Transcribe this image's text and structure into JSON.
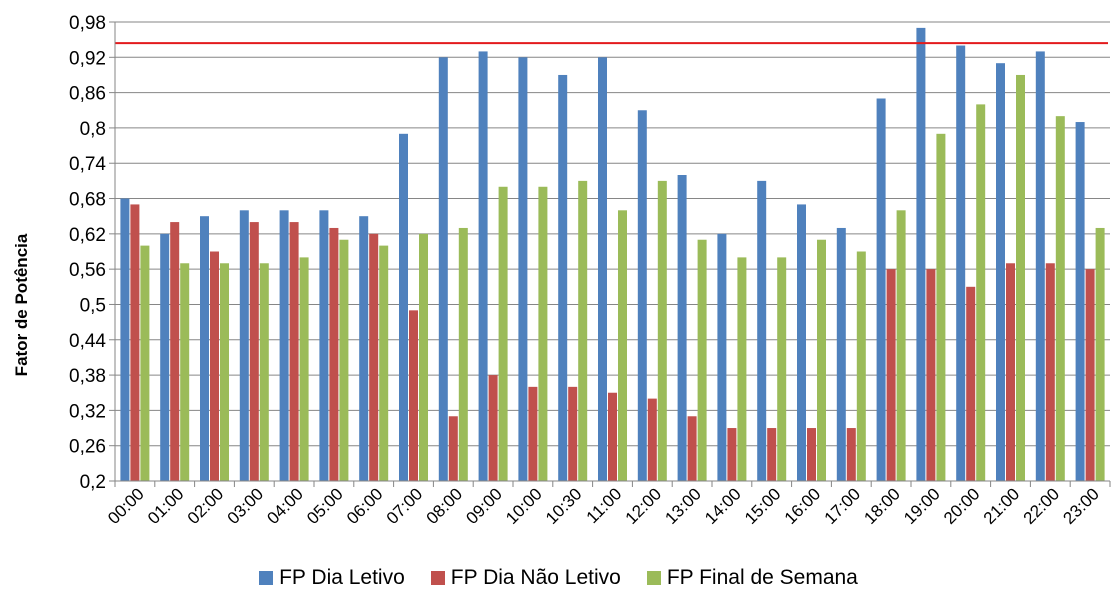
{
  "chart_data": {
    "type": "bar",
    "ylabel": "Fator de Potência",
    "ylim": [
      0.2,
      0.98
    ],
    "yticks": [
      "0,2",
      "0,26",
      "0,32",
      "0,38",
      "0,44",
      "0,5",
      "0,56",
      "0,62",
      "0,68",
      "0,74",
      "0,8",
      "0,86",
      "0,92",
      "0,98"
    ],
    "categories": [
      "00:00",
      "01:00",
      "02:00",
      "03:00",
      "04:00",
      "05:00",
      "06:00",
      "07:00",
      "08:00",
      "09:00",
      "10:00",
      "10:30",
      "11:00",
      "12:00",
      "13:00",
      "14:00",
      "15:00",
      "16:00",
      "17:00",
      "18:00",
      "19:00",
      "20:00",
      "21:00",
      "22:00",
      "23:00"
    ],
    "series": [
      {
        "name": "FP Dia Letivo",
        "color": "#4f81bd",
        "values": [
          0.68,
          0.62,
          0.65,
          0.66,
          0.66,
          0.66,
          0.65,
          0.79,
          0.92,
          0.93,
          0.92,
          0.89,
          0.92,
          0.83,
          0.72,
          0.62,
          0.71,
          0.67,
          0.63,
          0.85,
          0.97,
          0.94,
          0.91,
          0.93,
          0.81
        ]
      },
      {
        "name": "FP Dia Não Letivo",
        "color": "#c0504d",
        "values": [
          0.67,
          0.64,
          0.59,
          0.64,
          0.64,
          0.63,
          0.62,
          0.49,
          0.31,
          0.38,
          0.36,
          0.36,
          0.35,
          0.34,
          0.31,
          0.29,
          0.29,
          0.29,
          0.29,
          0.56,
          0.56,
          0.53,
          0.57,
          0.57,
          0.56
        ]
      },
      {
        "name": "FP Final de Semana",
        "color": "#9bbb59",
        "values": [
          0.6,
          0.57,
          0.57,
          0.57,
          0.58,
          0.61,
          0.6,
          0.62,
          0.63,
          0.7,
          0.7,
          0.71,
          0.66,
          0.71,
          0.61,
          0.58,
          0.58,
          0.61,
          0.59,
          0.66,
          0.79,
          0.84,
          0.89,
          0.82,
          0.63
        ]
      }
    ],
    "reference_line": {
      "value": 0.944,
      "color": "#e31a1c"
    },
    "grid": true,
    "legend_position": "bottom"
  }
}
